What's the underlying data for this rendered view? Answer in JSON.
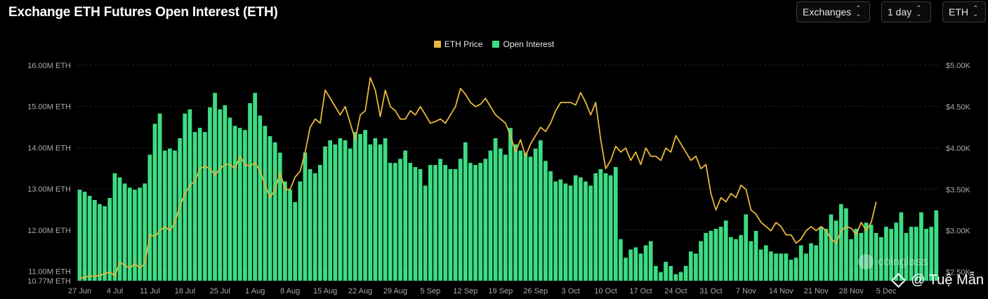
{
  "header": {
    "title": "Exchange ETH Futures Open Interest (ETH)",
    "controls": [
      {
        "label": "Exchanges",
        "icon": "chevron-updown-icon"
      },
      {
        "label": "1 day",
        "icon": "chevron-updown-icon"
      },
      {
        "label": "ETH",
        "icon": "chevron-updown-icon"
      }
    ]
  },
  "watermark": {
    "text": "coinglass"
  },
  "credit": {
    "text": "@ Tuệ Mẫn"
  },
  "chart_data": {
    "type": "bar",
    "title": "Exchange ETH Futures Open Interest (ETH)",
    "legend": [
      {
        "name": "ETH Price",
        "color": "#e8b73a"
      },
      {
        "name": "Open Interest",
        "color": "#3ddc84"
      }
    ],
    "legend_position": "top-center",
    "y_left": {
      "range": [
        10.77,
        16.0
      ],
      "unit": "M ETH",
      "ticks": [
        {
          "value": 10.77,
          "label": "10.77M ETH"
        },
        {
          "value": 11.0,
          "label": "11.00M ETH"
        },
        {
          "value": 12.0,
          "label": "12.00M ETH"
        },
        {
          "value": 13.0,
          "label": "13.00M ETH"
        },
        {
          "value": 14.0,
          "label": "14.00M ETH"
        },
        {
          "value": 15.0,
          "label": "15.00M ETH"
        },
        {
          "value": 16.0,
          "label": "16.00M ETH"
        }
      ]
    },
    "y_right": {
      "range": [
        2.395,
        5.0
      ],
      "unit": "K USD",
      "ticks": [
        {
          "value": 2.5,
          "label": "$2.50K"
        },
        {
          "value": 3.0,
          "label": "$3.00K"
        },
        {
          "value": 3.5,
          "label": "$3.50K"
        },
        {
          "value": 4.0,
          "label": "$4.00K"
        },
        {
          "value": 4.5,
          "label": "$4.50K"
        },
        {
          "value": 5.0,
          "label": "$5.00K"
        }
      ]
    },
    "x_labels": [
      {
        "index": 0,
        "label": "27 Jun"
      },
      {
        "index": 7,
        "label": "4 Jul"
      },
      {
        "index": 14,
        "label": "11 Jul"
      },
      {
        "index": 21,
        "label": "18 Jul"
      },
      {
        "index": 28,
        "label": "25 Jul"
      },
      {
        "index": 35,
        "label": "1 Aug"
      },
      {
        "index": 42,
        "label": "8 Aug"
      },
      {
        "index": 49,
        "label": "15 Aug"
      },
      {
        "index": 56,
        "label": "22 Aug"
      },
      {
        "index": 63,
        "label": "29 Aug"
      },
      {
        "index": 70,
        "label": "5 Sep"
      },
      {
        "index": 77,
        "label": "12 Sep"
      },
      {
        "index": 84,
        "label": "19 Sep"
      },
      {
        "index": 91,
        "label": "26 Sep"
      },
      {
        "index": 98,
        "label": "3 Oct"
      },
      {
        "index": 105,
        "label": "10 Oct"
      },
      {
        "index": 112,
        "label": "17 Oct"
      },
      {
        "index": 119,
        "label": "24 Oct"
      },
      {
        "index": 126,
        "label": "31 Oct"
      },
      {
        "index": 133,
        "label": "7 Nov"
      },
      {
        "index": 140,
        "label": "14 Nov"
      },
      {
        "index": 147,
        "label": "21 Nov"
      },
      {
        "index": 154,
        "label": "28 Nov"
      },
      {
        "index": 161,
        "label": "5 Dec"
      }
    ],
    "series": [
      {
        "name": "Open Interest",
        "axis": "left",
        "values": [
          12.98,
          12.93,
          12.83,
          12.73,
          12.63,
          12.58,
          12.78,
          13.38,
          13.28,
          13.13,
          13.03,
          12.98,
          13.03,
          13.13,
          13.83,
          14.58,
          14.83,
          13.93,
          13.98,
          13.93,
          14.23,
          14.83,
          14.93,
          14.38,
          14.48,
          14.38,
          14.98,
          15.33,
          14.93,
          15.03,
          14.73,
          14.53,
          14.48,
          14.43,
          15.08,
          15.33,
          14.78,
          14.53,
          14.28,
          14.13,
          13.88,
          13.18,
          12.98,
          12.68,
          13.18,
          13.88,
          13.48,
          13.38,
          13.58,
          14.03,
          14.18,
          14.08,
          14.23,
          14.18,
          13.98,
          14.38,
          14.33,
          14.43,
          14.08,
          14.23,
          14.08,
          14.23,
          13.63,
          13.63,
          13.73,
          13.93,
          13.63,
          13.53,
          13.48,
          13.08,
          13.58,
          13.58,
          13.73,
          13.58,
          13.48,
          13.48,
          13.73,
          14.13,
          13.63,
          13.58,
          13.63,
          13.73,
          13.93,
          14.23,
          13.98,
          13.83,
          14.48,
          14.08,
          13.93,
          13.88,
          13.78,
          13.98,
          14.18,
          13.68,
          13.43,
          13.18,
          13.23,
          13.13,
          13.08,
          13.33,
          13.28,
          13.18,
          13.08,
          13.38,
          13.48,
          13.38,
          13.33,
          13.53,
          11.78,
          11.33,
          11.53,
          11.58,
          11.43,
          11.63,
          11.73,
          11.13,
          10.98,
          11.23,
          11.13,
          10.93,
          10.98,
          11.13,
          11.48,
          11.43,
          11.73,
          11.93,
          11.98,
          12.03,
          12.08,
          12.23,
          11.83,
          11.78,
          11.88,
          12.38,
          11.73,
          11.98,
          11.53,
          11.63,
          11.48,
          11.43,
          11.43,
          11.43,
          11.28,
          11.33,
          11.63,
          11.43,
          11.68,
          11.63,
          12.08,
          12.03,
          12.38,
          12.23,
          12.63,
          12.53,
          11.78,
          12.03,
          11.93,
          12.18,
          12.13,
          11.93,
          11.83,
          12.08,
          12.03,
          12.18,
          12.43,
          11.93,
          12.08,
          12.08,
          12.43,
          12.03,
          12.08,
          12.48
        ]
      },
      {
        "name": "ETH Price",
        "axis": "right",
        "values": [
          2.42,
          2.44,
          2.45,
          2.45,
          2.46,
          2.48,
          2.5,
          2.45,
          2.62,
          2.58,
          2.55,
          2.6,
          2.55,
          2.6,
          2.95,
          2.93,
          3.0,
          3.05,
          3.0,
          3.1,
          3.3,
          3.45,
          3.55,
          3.6,
          3.75,
          3.78,
          3.75,
          3.67,
          3.75,
          3.8,
          3.8,
          3.75,
          3.9,
          3.8,
          3.78,
          3.82,
          3.72,
          3.55,
          3.4,
          3.5,
          3.7,
          3.5,
          3.5,
          3.65,
          3.72,
          3.95,
          4.25,
          4.35,
          4.3,
          4.7,
          4.6,
          4.5,
          4.4,
          4.5,
          4.3,
          4.1,
          4.4,
          4.45,
          4.85,
          4.7,
          4.38,
          4.7,
          4.5,
          4.45,
          4.35,
          4.35,
          4.45,
          4.4,
          4.5,
          4.4,
          4.3,
          4.32,
          4.35,
          4.3,
          4.4,
          4.5,
          4.72,
          4.65,
          4.55,
          4.5,
          4.53,
          4.6,
          4.5,
          4.4,
          4.35,
          4.3,
          4.15,
          3.95,
          4.1,
          3.9,
          4.05,
          4.15,
          4.25,
          4.2,
          4.3,
          4.45,
          4.55,
          4.55,
          4.55,
          4.52,
          4.67,
          4.55,
          4.4,
          4.55,
          4.1,
          3.75,
          3.85,
          4.02,
          3.95,
          4.0,
          3.85,
          3.95,
          3.8,
          4.0,
          3.9,
          3.9,
          3.85,
          4.0,
          3.95,
          4.15,
          4.05,
          3.95,
          3.85,
          3.9,
          3.75,
          3.8,
          3.45,
          3.25,
          3.4,
          3.35,
          3.45,
          3.4,
          3.55,
          3.5,
          3.25,
          3.2,
          3.1,
          3.05,
          3.0,
          3.1,
          3.05,
          2.95,
          2.95,
          2.85,
          2.9,
          3.0,
          3.05,
          3.0,
          3.05,
          3.0,
          2.9,
          2.85,
          3.0,
          3.05,
          3.03,
          2.95,
          3.1,
          3.0,
          3.1,
          3.35
        ]
      }
    ]
  }
}
